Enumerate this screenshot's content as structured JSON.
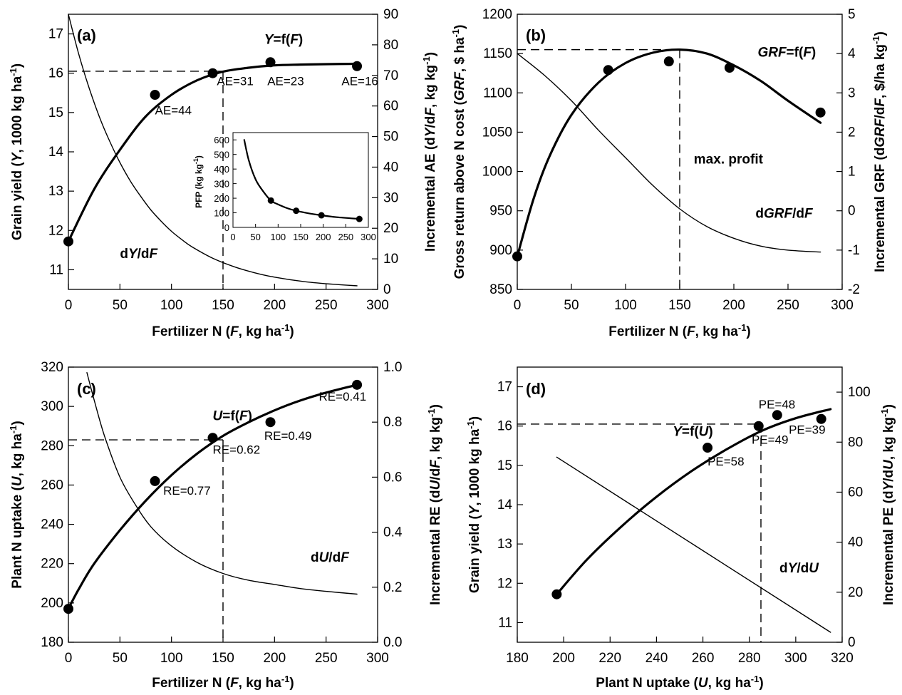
{
  "chart_data": [
    {
      "id": "a",
      "type": "line",
      "panel_label": "(a)",
      "xlabel": "Fertilizer N (F, kg ha-1)",
      "ylabel": "Grain yield (Y, 1000 kg ha-1)",
      "y2label": "Incremental AE (dY/dF, kg kg-1)",
      "xlim": [
        0,
        300
      ],
      "ylim": [
        10.5,
        17.5
      ],
      "y2lim": [
        0,
        90
      ],
      "xticks": [
        "0",
        "50",
        "100",
        "150",
        "200",
        "250",
        "300"
      ],
      "yticks": [
        "11",
        "12",
        "13",
        "14",
        "15",
        "16",
        "17"
      ],
      "y2ticks": [
        "0",
        "10",
        "20",
        "30",
        "40",
        "50",
        "60",
        "70",
        "80",
        "90"
      ],
      "series": [
        {
          "name": "Y=f(F)",
          "axis": "left",
          "kind": "points",
          "x": [
            0,
            84,
            140,
            196,
            280
          ],
          "y": [
            11.72,
            15.45,
            16.0,
            16.28,
            16.18
          ]
        },
        {
          "name": "Y=f(F)",
          "axis": "left",
          "kind": "curve",
          "x": [
            0,
            25,
            50,
            75,
            100,
            125,
            150,
            175,
            200,
            225,
            250,
            280
          ],
          "y": [
            11.72,
            13.05,
            14.05,
            14.9,
            15.45,
            15.82,
            16.04,
            16.14,
            16.2,
            16.22,
            16.23,
            16.24
          ]
        },
        {
          "name": "dY/dF",
          "axis": "right",
          "kind": "curve",
          "x": [
            0,
            10,
            20,
            30,
            40,
            50,
            60,
            70,
            80,
            90,
            100,
            110,
            120,
            140,
            160,
            180,
            200,
            230,
            260,
            280
          ],
          "y": [
            90,
            77,
            66,
            56.5,
            48.5,
            41.5,
            35.5,
            30.5,
            26,
            22.3,
            19,
            16.3,
            13.9,
            10.2,
            7.5,
            5.5,
            4,
            2.5,
            1.6,
            1.2
          ]
        }
      ],
      "annotations": [
        {
          "text": "Y=f(F)",
          "x": 190,
          "y": 16.75
        },
        {
          "text": "dY/dF",
          "x": 50,
          "y": 11.3
        },
        {
          "text": "AE=44",
          "x": 84,
          "y": 14.95
        },
        {
          "text": "AE=31",
          "x": 144,
          "y": 15.7
        },
        {
          "text": "AE=23",
          "x": 193,
          "y": 15.7
        },
        {
          "text": "AE=16",
          "x": 265,
          "y": 15.7
        }
      ],
      "reference": {
        "x": 150,
        "y": 16.05
      },
      "inset": {
        "ylabel": "PFP (kg kg-1)",
        "xlim": [
          0,
          300
        ],
        "ylim": [
          0,
          650
        ],
        "xticks": [
          "0",
          "50",
          "100",
          "150",
          "200",
          "250",
          "300"
        ],
        "yticks": [
          "0",
          "100",
          "200",
          "300",
          "400",
          "500",
          "600"
        ],
        "points": {
          "x": [
            84,
            140,
            196,
            280
          ],
          "y": [
            184,
            114,
            83,
            58
          ]
        },
        "curve": {
          "x": [
            25,
            35,
            50,
            65,
            84,
            100,
            120,
            140,
            170,
            196,
            230,
            280
          ],
          "y": [
            600,
            460,
            330,
            255,
            184,
            158,
            132,
            114,
            95,
            83,
            70,
            58
          ]
        }
      }
    },
    {
      "id": "b",
      "type": "line",
      "panel_label": "(b)",
      "xlabel": "Fertilizer N (F, kg ha-1)",
      "ylabel": "Gross return above N cost (GRF, $ ha-1)",
      "y2label": "Incremental GRF (dGRF/dF, $/ha kg-1)",
      "xlim": [
        0,
        300
      ],
      "ylim": [
        850,
        1200
      ],
      "y2lim": [
        -2,
        5
      ],
      "xticks": [
        "0",
        "50",
        "100",
        "150",
        "200",
        "250",
        "300"
      ],
      "yticks": [
        "850",
        "900",
        "950",
        "1000",
        "1050",
        "1100",
        "1150",
        "1200"
      ],
      "y2ticks": [
        "-2",
        "-1",
        "0",
        "1",
        "2",
        "3",
        "4",
        "5"
      ],
      "series": [
        {
          "name": "GRF=f(F)",
          "axis": "left",
          "kind": "points",
          "x": [
            0,
            84,
            140,
            196,
            280
          ],
          "y": [
            892,
            1129,
            1140,
            1132,
            1075
          ]
        },
        {
          "name": "GRF=f(F)",
          "axis": "left",
          "kind": "curve",
          "x": [
            0,
            15,
            30,
            50,
            75,
            100,
            125,
            150,
            175,
            200,
            225,
            250,
            280
          ],
          "y": [
            892,
            965,
            1020,
            1072,
            1113,
            1138,
            1151,
            1155,
            1150,
            1135,
            1115,
            1090,
            1062
          ]
        },
        {
          "name": "dGRF/dF",
          "axis": "right",
          "kind": "curve",
          "x": [
            0,
            25,
            50,
            75,
            100,
            125,
            150,
            175,
            200,
            225,
            250,
            280
          ],
          "y": [
            4.0,
            3.45,
            2.8,
            2.05,
            1.35,
            0.65,
            0.05,
            -0.4,
            -0.7,
            -0.9,
            -1.0,
            -1.05
          ]
        }
      ],
      "annotations": [
        {
          "text": "GRF=f(F)",
          "x": 222,
          "y": 1146
        },
        {
          "text": "dGRF/dF",
          "x": 220,
          "y": 941
        },
        {
          "text": "max. profit",
          "x": 163,
          "y": 1010
        }
      ],
      "reference": {
        "x": 150,
        "y": 1155
      }
    },
    {
      "id": "c",
      "type": "line",
      "panel_label": "(c)",
      "xlabel": "Fertilizer N (F, kg ha-1)",
      "ylabel": "Plant N uptake (U, kg ha-1)",
      "y2label": "Incremental RE (dU/dF, kg kg-1)",
      "xlim": [
        0,
        300
      ],
      "ylim": [
        180,
        320
      ],
      "y2lim": [
        0,
        1
      ],
      "xticks": [
        "0",
        "50",
        "100",
        "150",
        "200",
        "250",
        "300"
      ],
      "yticks": [
        "180",
        "200",
        "220",
        "240",
        "260",
        "280",
        "300",
        "320"
      ],
      "y2ticks": [
        "0.0",
        "0.2",
        "0.4",
        "0.6",
        "0.8",
        "1.0"
      ],
      "series": [
        {
          "name": "U=f(F)",
          "axis": "left",
          "kind": "points",
          "x": [
            0,
            84,
            140,
            196,
            280
          ],
          "y": [
            197,
            262,
            284,
            292,
            311
          ]
        },
        {
          "name": "U=f(F)",
          "axis": "left",
          "kind": "curve",
          "x": [
            0,
            10,
            25,
            50,
            75,
            100,
            125,
            150,
            175,
            200,
            225,
            250,
            280
          ],
          "y": [
            197,
            207,
            220,
            237,
            252,
            265,
            276,
            285,
            292,
            298,
            303,
            307,
            311
          ]
        },
        {
          "name": "dU/dF",
          "axis": "right",
          "kind": "curve",
          "x": [
            18,
            25,
            35,
            50,
            65,
            80,
            100,
            125,
            150,
            175,
            200,
            225,
            250,
            280
          ],
          "y": [
            0.98,
            0.88,
            0.75,
            0.6,
            0.5,
            0.42,
            0.35,
            0.29,
            0.25,
            0.225,
            0.21,
            0.195,
            0.185,
            0.175
          ]
        }
      ],
      "annotations": [
        {
          "text": "U=f(F)",
          "x": 140,
          "y": 293
        },
        {
          "text": "dU/dF",
          "x": 235,
          "y": 221
        },
        {
          "text": "RE=0.77",
          "x": 92,
          "y": 255
        },
        {
          "text": "RE=0.62",
          "x": 140,
          "y": 276
        },
        {
          "text": "RE=0.49",
          "x": 190,
          "y": 283
        },
        {
          "text": "RE=0.41",
          "x": 243,
          "y": 303
        }
      ],
      "reference": {
        "x": 150,
        "y": 283
      }
    },
    {
      "id": "d",
      "type": "line",
      "panel_label": "(d)",
      "xlabel": "Plant N uptake (U, kg ha-1)",
      "ylabel": "Grain yield (Y, 1000 kg ha-1)",
      "y2label": "Incremental PE (dY/dU, kg kg-1)",
      "xlim": [
        180,
        320
      ],
      "ylim": [
        10.5,
        17.5
      ],
      "y2lim": [
        0,
        110
      ],
      "xticks": [
        "180",
        "200",
        "220",
        "240",
        "260",
        "280",
        "300",
        "320"
      ],
      "yticks": [
        "11",
        "12",
        "13",
        "14",
        "15",
        "16",
        "17"
      ],
      "y2ticks": [
        "0",
        "20",
        "40",
        "60",
        "80",
        "100"
      ],
      "series": [
        {
          "name": "Y=f(U)",
          "axis": "left",
          "kind": "points",
          "x": [
            197,
            262,
            284,
            292,
            311
          ],
          "y": [
            11.72,
            15.45,
            16.0,
            16.28,
            16.18
          ]
        },
        {
          "name": "Y=f(U)",
          "axis": "left",
          "kind": "curve",
          "x": [
            197,
            210,
            225,
            240,
            255,
            270,
            285,
            300,
            315
          ],
          "y": [
            11.72,
            12.6,
            13.45,
            14.2,
            14.85,
            15.4,
            15.87,
            16.2,
            16.43
          ]
        },
        {
          "name": "dY/dU",
          "axis": "right",
          "kind": "curve",
          "x": [
            197,
            315
          ],
          "y": [
            74,
            4
          ]
        }
      ],
      "annotations": [
        {
          "text": "Y=f(U)",
          "x": 247,
          "y": 15.75
        },
        {
          "text": "dY/dU",
          "x": 293,
          "y": 12.28
        },
        {
          "text": "PE=58",
          "x": 262,
          "y": 15.0
        },
        {
          "text": "PE=49",
          "x": 281,
          "y": 15.55
        },
        {
          "text": "PE=48",
          "x": 284,
          "y": 16.45
        },
        {
          "text": "PE=39",
          "x": 297,
          "y": 15.8
        }
      ],
      "reference": {
        "x": 285,
        "y": 16.05
      }
    }
  ]
}
